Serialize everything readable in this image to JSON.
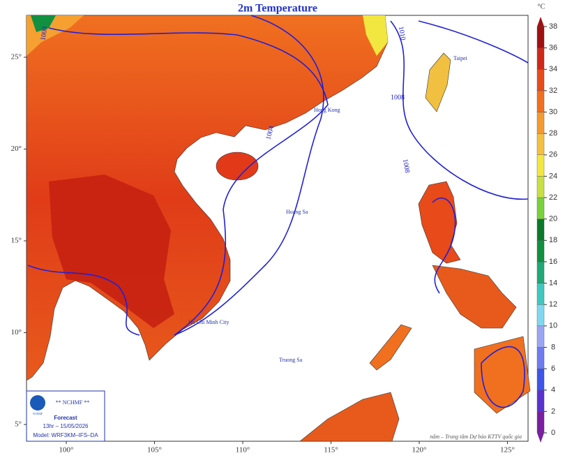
{
  "title": "2m Temperature",
  "unit": "°C",
  "colorbar": {
    "ticks": [
      0,
      2,
      4,
      6,
      8,
      10,
      12,
      14,
      16,
      18,
      20,
      22,
      24,
      26,
      28,
      30,
      32,
      34,
      36,
      38
    ],
    "colors": [
      "#7b1fa2",
      "#5a32d0",
      "#3d55e8",
      "#6f7cf0",
      "#9aa6f4",
      "#7fd8f0",
      "#3fc8c0",
      "#20a878",
      "#109040",
      "#0a7a2a",
      "#7ad23a",
      "#c8e040",
      "#f2e640",
      "#f5c040",
      "#f59a30",
      "#f07020",
      "#e84a1a",
      "#d02818",
      "#a01010"
    ]
  },
  "lon_ticks": [
    {
      "value": 100,
      "label": "100°"
    },
    {
      "value": 105,
      "label": "105°"
    },
    {
      "value": 110,
      "label": "110°"
    },
    {
      "value": 115,
      "label": "115°"
    },
    {
      "value": 120,
      "label": "120°"
    },
    {
      "value": 125,
      "label": "125°"
    }
  ],
  "lat_ticks": [
    {
      "value": 5,
      "label": "5°"
    },
    {
      "value": 10,
      "label": "10°"
    },
    {
      "value": 15,
      "label": "15°"
    },
    {
      "value": 20,
      "label": "20°"
    },
    {
      "value": 25,
      "label": "25°"
    }
  ],
  "isobar_labels": [
    "1000",
    "1010",
    "1004",
    "1008",
    "1008"
  ],
  "place_labels": [
    "Taipei",
    "Hong Kong",
    "Hoang Sa",
    "Truong Sa",
    "Ho Chi Minh City"
  ],
  "info": {
    "logo": "NCHMF",
    "agency": "** NCHMF **",
    "title": "Forecast",
    "time": "13hr – 15/05/2026",
    "model": "Model: WRF3KM–IFS–DA"
  },
  "credit": "nâm – Trung tâm Dự báo KTTV quốc gia"
}
